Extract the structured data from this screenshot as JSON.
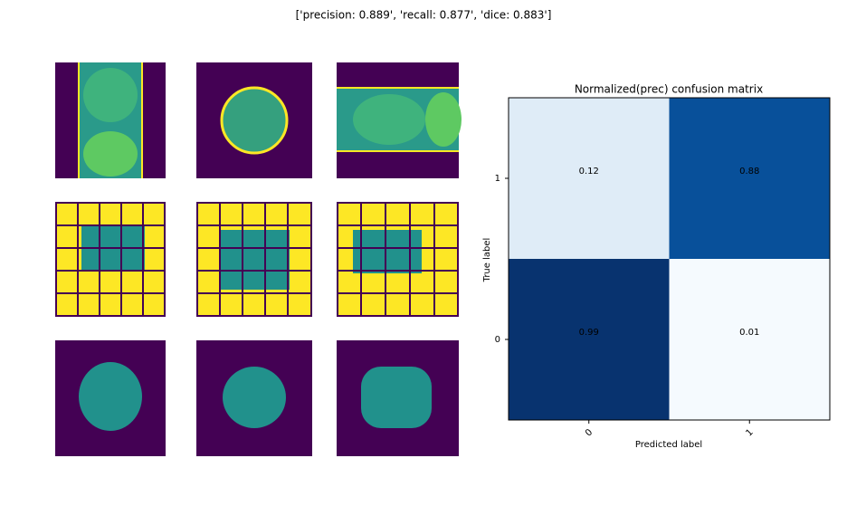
{
  "suptitle": "['precision: 0.889', 'recall: 0.877', 'dice: 0.883']",
  "chart_data": {
    "type": "heatmap",
    "title": "Normalized(prec) confusion matrix",
    "xlabel": "Predicted label",
    "ylabel": "True label",
    "x_categories": [
      "0",
      "1"
    ],
    "y_categories": [
      "1",
      "0"
    ],
    "values": [
      [
        0.12,
        0.88
      ],
      [
        0.99,
        0.01
      ]
    ],
    "colormap": "Blues"
  }
}
